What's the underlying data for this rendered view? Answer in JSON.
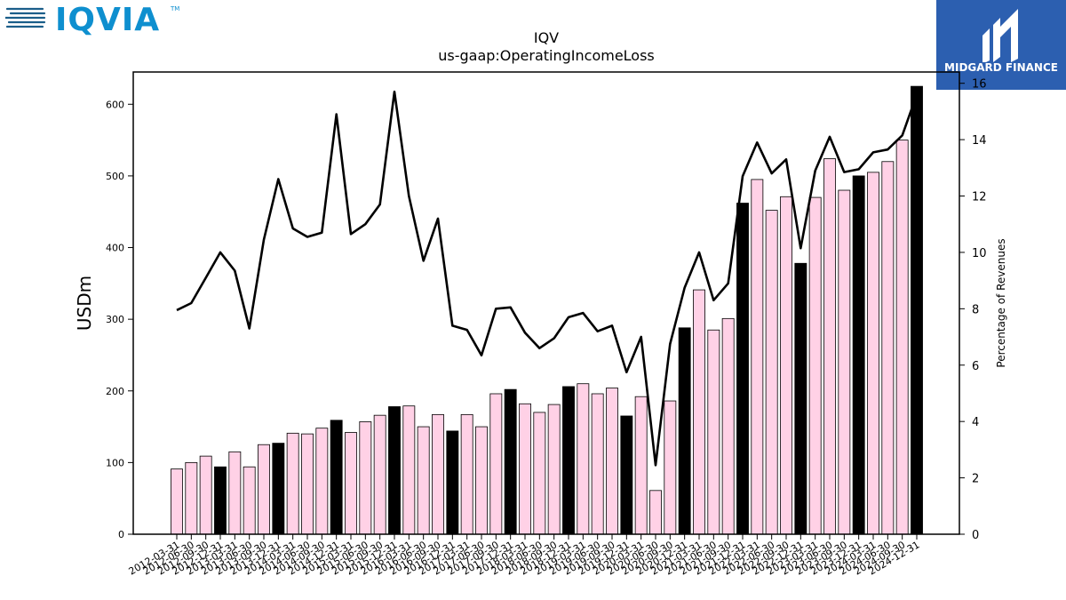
{
  "chart_data": {
    "type": "bar",
    "title": "IQV",
    "subtitle": "us-gaap:OperatingIncomeLoss",
    "ylabel": "USDm",
    "y2label": "Percentage of Revenues",
    "ylim": [
      0,
      645
    ],
    "y2lim": [
      0,
      16.4
    ],
    "yticks": [
      0,
      100,
      200,
      300,
      400,
      500,
      600
    ],
    "y2ticks": [
      0,
      2,
      4,
      6,
      8,
      10,
      12,
      14,
      16
    ],
    "categories": [
      "2012-03-31",
      "2012-06-30",
      "2012-09-30",
      "2012-12-31",
      "2013-03-31",
      "2013-06-30",
      "2013-09-30",
      "2013-12-31",
      "2014-03-31",
      "2014-06-30",
      "2014-09-30",
      "2014-12-31",
      "2015-03-31",
      "2015-06-30",
      "2015-09-30",
      "2015-12-31",
      "2016-03-31",
      "2016-06-30",
      "2016-09-30",
      "2016-12-31",
      "2017-03-31",
      "2017-06-30",
      "2017-09-30",
      "2017-12-31",
      "2018-03-31",
      "2018-06-30",
      "2018-09-30",
      "2018-12-31",
      "2019-03-31",
      "2019-06-30",
      "2019-09-30",
      "2019-12-31",
      "2020-03-31",
      "2020-06-30",
      "2020-09-30",
      "2020-12-31",
      "2021-03-31",
      "2021-06-30",
      "2021-09-30",
      "2021-12-31",
      "2022-03-31",
      "2022-06-30",
      "2022-09-30",
      "2022-12-31",
      "2023-03-31",
      "2023-06-30",
      "2023-09-30",
      "2023-12-31",
      "2024-03-31",
      "2024-06-30",
      "2024-09-30",
      "2024-12-31"
    ],
    "series": [
      {
        "kind": "bar",
        "values": [
          91,
          100,
          109,
          94,
          115,
          94,
          125,
          127,
          141,
          140,
          148,
          159,
          142,
          157,
          166,
          178,
          179,
          150,
          167,
          144,
          167,
          150,
          196,
          202,
          182,
          170,
          181,
          206,
          210,
          196,
          204,
          165,
          192,
          61,
          186,
          288,
          341,
          285,
          301,
          462,
          495,
          452,
          471,
          378,
          470,
          524,
          480,
          500,
          505,
          520,
          550,
          625
        ],
        "highlight": [
          false,
          false,
          false,
          true,
          false,
          false,
          false,
          true,
          false,
          false,
          false,
          true,
          false,
          false,
          false,
          true,
          false,
          false,
          false,
          true,
          false,
          false,
          false,
          true,
          false,
          false,
          false,
          true,
          false,
          false,
          false,
          true,
          false,
          false,
          false,
          true,
          false,
          false,
          false,
          true,
          false,
          false,
          false,
          true,
          false,
          false,
          false,
          true,
          false,
          false,
          false,
          true
        ]
      },
      {
        "kind": "line",
        "axis": "right",
        "values": [
          7.95,
          8.2,
          9.1,
          10.0,
          9.35,
          7.3,
          10.45,
          12.6,
          10.85,
          10.55,
          10.7,
          14.9,
          10.65,
          11.0,
          11.7,
          15.7,
          12.0,
          9.7,
          11.2,
          7.4,
          7.25,
          6.35,
          8.0,
          8.05,
          7.15,
          6.6,
          6.95,
          7.7,
          7.85,
          7.2,
          7.4,
          5.75,
          7.0,
          2.45,
          6.75,
          8.75,
          10.0,
          8.3,
          8.9,
          12.7,
          13.9,
          12.8,
          13.3,
          10.15,
          12.9,
          14.1,
          12.85,
          12.95,
          13.55,
          13.65,
          14.15,
          15.6
        ]
      }
    ],
    "colors": {
      "bar_fill": "#ffd1e6",
      "bar_highlight": "#000000",
      "line": "#000000"
    }
  },
  "branding": {
    "left_logo": "IQVIA",
    "right_logo": "MIDGARD FINANCE"
  }
}
